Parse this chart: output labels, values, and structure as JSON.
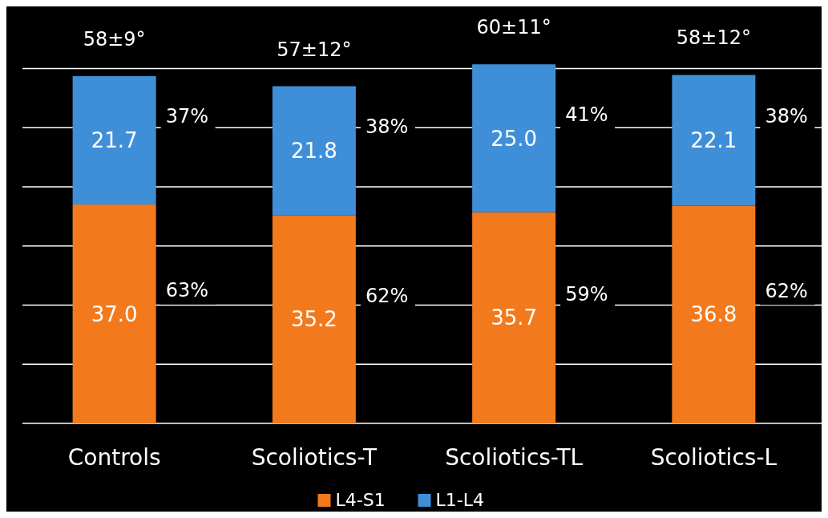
{
  "chart_data": {
    "type": "bar",
    "stacked": true,
    "categories": [
      "Controls",
      "Scoliotics-T",
      "Scoliotics-TL",
      "Scoliotics-L"
    ],
    "series": [
      {
        "name": "L4-S1",
        "color": "#f27a1c",
        "values": [
          37.0,
          35.2,
          35.7,
          36.8
        ],
        "value_labels": [
          "37.0",
          "35.2",
          "35.7",
          "36.8"
        ]
      },
      {
        "name": "L1-L4",
        "color": "#3f8fd8",
        "values": [
          21.7,
          21.8,
          25.0,
          22.1
        ],
        "value_labels": [
          "21.7",
          "21.8",
          "25.0",
          "22.1"
        ]
      }
    ],
    "totals": [
      "58±9°",
      "57±12°",
      "60±11°",
      "58±12°"
    ],
    "annotations": [
      "37%",
      "63%",
      "38%",
      "62%",
      "41%",
      "59%",
      "38%",
      "62%"
    ],
    "ylim": [
      0,
      61
    ],
    "yticks": [
      {
        "value": 0,
        "label": null
      },
      {
        "value": 10,
        "label": null
      },
      {
        "value": 20,
        "label": null
      },
      {
        "value": 30,
        "label": null
      },
      {
        "value": 40,
        "label": null
      },
      {
        "value": 50,
        "label": null
      },
      {
        "value": 60,
        "label": null
      }
    ],
    "tick_labels": "x",
    "grid": "y",
    "legend": "bottom"
  }
}
